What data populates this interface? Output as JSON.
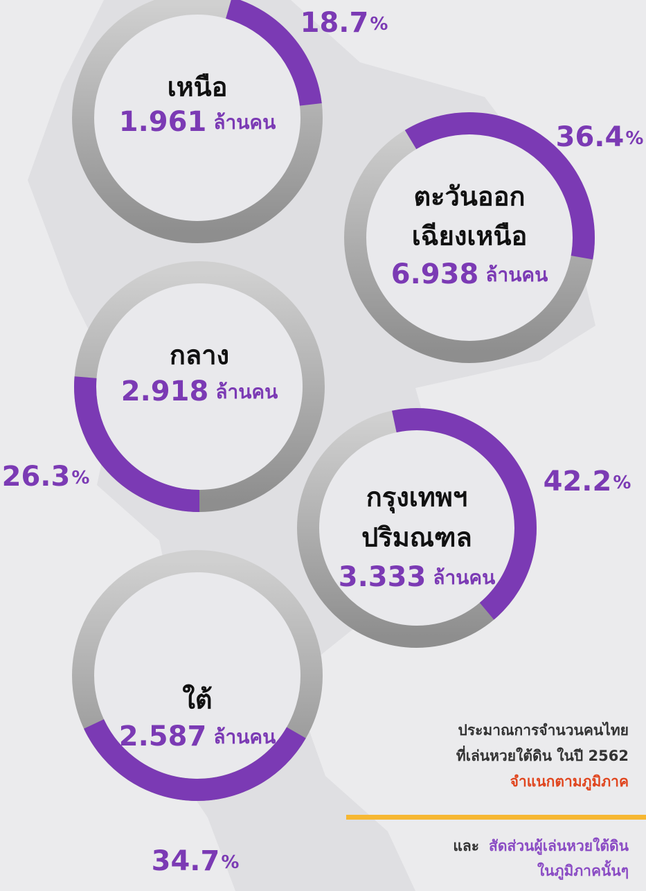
{
  "chart_data": {
    "type": "donut",
    "ring_color": "#b0b0b0",
    "color": "#7b3ab4",
    "regions": [
      {
        "name": [
          "เหนือ"
        ],
        "value": 1.961,
        "unit": "ล้านคน",
        "percent": 18.7,
        "percent_unit": "%"
      },
      {
        "name": [
          "ตะวันออก",
          "เฉียงเหนือ"
        ],
        "value": 6.938,
        "unit": "ล้านคน",
        "percent": 36.4,
        "percent_unit": "%"
      },
      {
        "name": [
          "กลาง"
        ],
        "value": 2.918,
        "unit": "ล้านคน",
        "percent": 26.3,
        "percent_unit": "%"
      },
      {
        "name": [
          "กรุงเทพฯ",
          "ปริมณฑล"
        ],
        "value": 3.333,
        "unit": "ล้านคน",
        "percent": 42.2,
        "percent_unit": "%"
      },
      {
        "name": [
          "ใต้"
        ],
        "value": 2.587,
        "unit": "ล้านคน",
        "percent": 34.7,
        "percent_unit": "%"
      }
    ],
    "caption": {
      "lines": [
        "ประมาณการจำนวนคนไทย",
        "ที่เล่นหวยใต้ดิน ในปี 2562"
      ],
      "highlight": "จำแนกตามภูมิภาค",
      "and": "และ",
      "note": [
        "สัดส่วนผู้เล่นหวยใต้ดิน",
        "ในภูมิภาคนั้นๆ"
      ]
    }
  }
}
